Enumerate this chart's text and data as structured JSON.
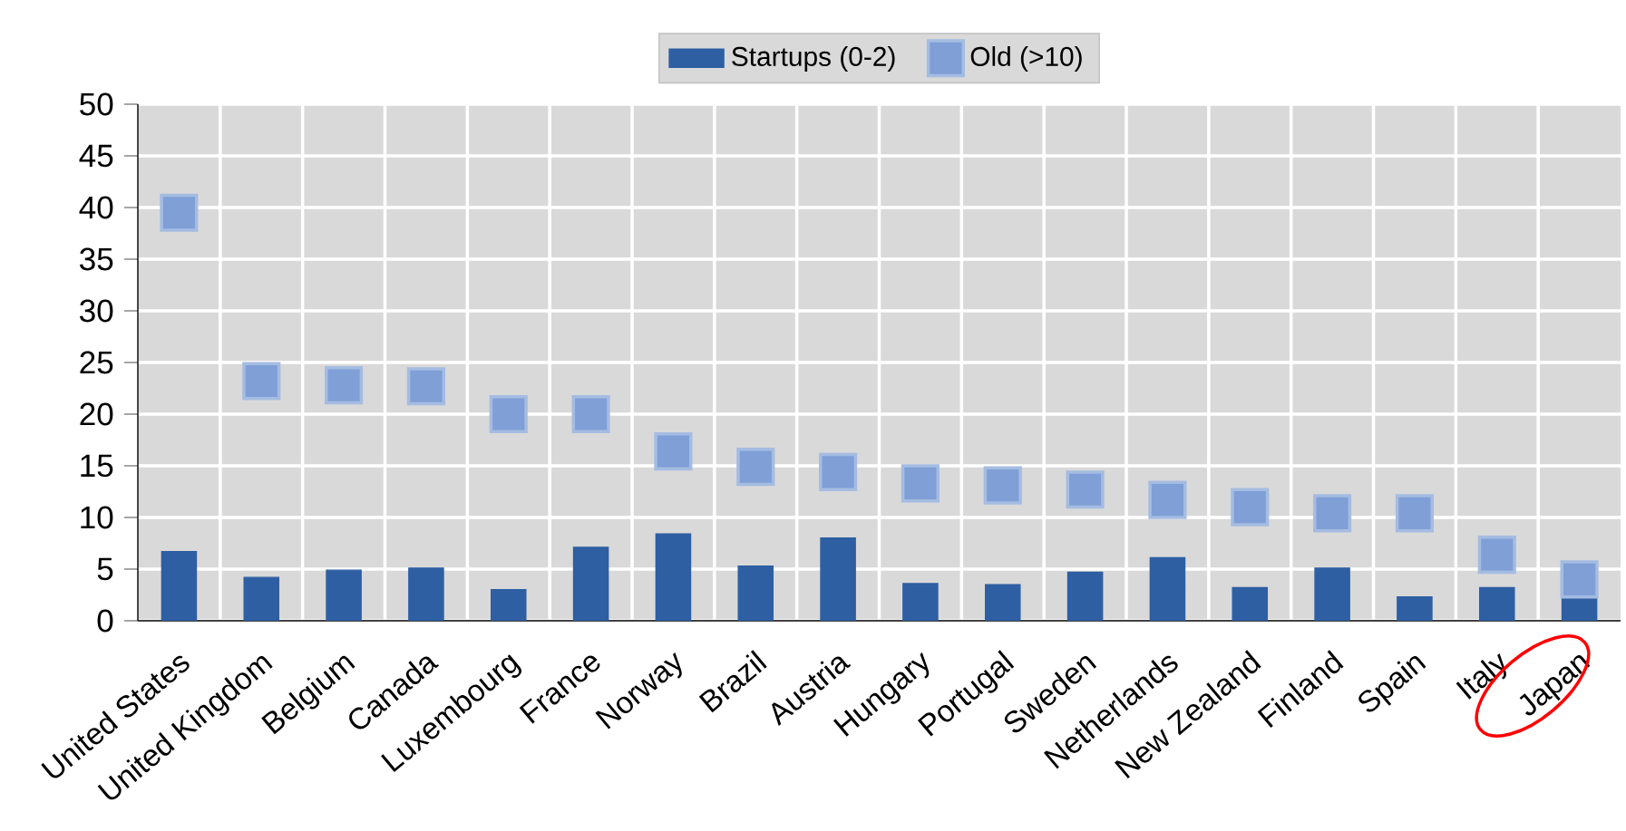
{
  "chart_data": {
    "type": "bar",
    "categories": [
      "United States",
      "United Kingdom",
      "Belgium",
      "Canada",
      "Luxembourg",
      "France",
      "Norway",
      "Brazil",
      "Austria",
      "Hungary",
      "Portugal",
      "Sweden",
      "Netherlands",
      "New Zealand",
      "Finland",
      "Spain",
      "Italy",
      "Japan"
    ],
    "series": [
      {
        "name": "Startups (0-2)",
        "color": "#2e5fa3",
        "values": [
          6.7,
          4.2,
          4.9,
          5.1,
          3.0,
          7.1,
          8.4,
          5.3,
          8.0,
          3.6,
          3.5,
          4.7,
          6.1,
          3.2,
          5.1,
          2.3,
          3.2,
          2.8
        ]
      },
      {
        "name": "Old (>10)",
        "type": "scatter",
        "marker": "square",
        "color": "#7f9fd6",
        "values": [
          39.5,
          23.2,
          22.8,
          22.7,
          20.0,
          20.0,
          16.4,
          14.9,
          14.4,
          13.3,
          13.1,
          12.7,
          11.7,
          11.0,
          10.4,
          10.4,
          6.4,
          4.0
        ]
      }
    ],
    "ylim": [
      0,
      50
    ],
    "yticks": [
      0,
      5,
      10,
      15,
      20,
      25,
      30,
      35,
      40,
      45,
      50
    ],
    "grid": true,
    "legend": "top"
  }
}
